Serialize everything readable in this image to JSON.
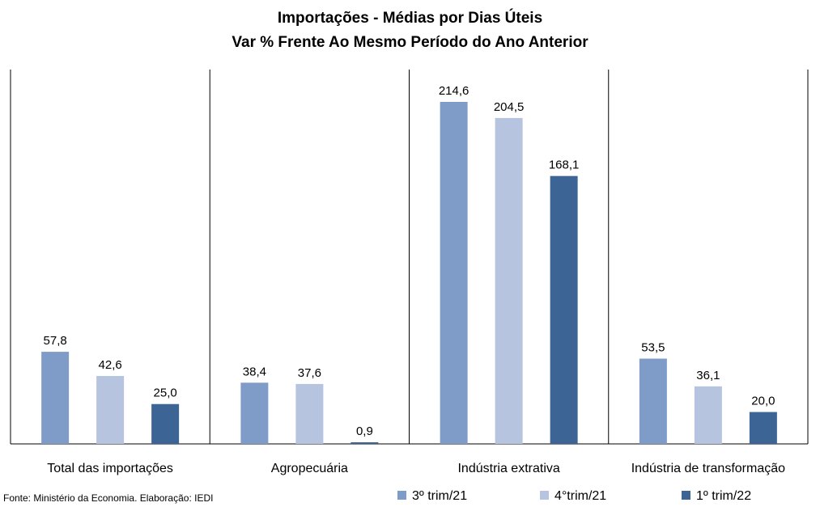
{
  "chart_data": {
    "type": "bar",
    "title": "Importações - Médias por Dias Úteis",
    "subtitle": "Var % Frente Ao Mesmo Período do Ano Anterior",
    "categories": [
      "Total das importações",
      "Agropecuária",
      "Indústria extrativa",
      "Indústria de transformação"
    ],
    "series": [
      {
        "name": "3º trim/21",
        "color": "#7f9cc9",
        "values": [
          57.8,
          38.4,
          214.6,
          53.5
        ]
      },
      {
        "name": "4°trim/21",
        "color": "#b7c4df",
        "values": [
          42.6,
          37.6,
          204.5,
          36.1
        ]
      },
      {
        "name": "1º trim/22",
        "color": "#3c6595",
        "values": [
          25.0,
          0.9,
          168.1,
          20.0
        ]
      }
    ],
    "ylim": [
      0,
      250
    ],
    "legend": "bottom-right",
    "grid": false,
    "source": "Fonte: Ministério da Economia. Elaboração: IEDI"
  }
}
